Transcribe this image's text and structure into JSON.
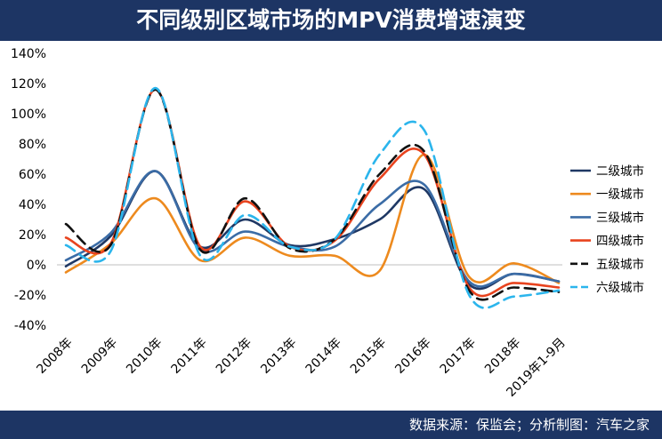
{
  "header": {
    "title": "不同级别区域市场的MPV消费增速演变"
  },
  "footer": {
    "source": "数据来源：保监会；分析制图：汽车之家"
  },
  "chart_data": {
    "type": "line",
    "title": "不同级别区域市场的MPV消费增速演变",
    "xlabel": "",
    "ylabel": "",
    "categories": [
      "2008年",
      "2009年",
      "2010年",
      "2011年",
      "2012年",
      "2013年",
      "2014年",
      "2015年",
      "2016年",
      "2017年",
      "2018年",
      "2019年1-9月"
    ],
    "y_ticks": [
      "140%",
      "120%",
      "100%",
      "80%",
      "60%",
      "40%",
      "20%",
      "0%",
      "-20%",
      "-40%"
    ],
    "ylim": [
      -40,
      140
    ],
    "y_unit": "%",
    "grid": false,
    "smooth": true,
    "legend_position": "right",
    "series": [
      {
        "name": "二级城市",
        "color": "#1f3864",
        "dash": "solid",
        "values": [
          -1,
          19,
          62,
          12,
          30,
          13,
          17,
          30,
          50,
          -13,
          -6,
          -11
        ]
      },
      {
        "name": "一级城市",
        "color": "#ed8a1e",
        "dash": "solid",
        "values": [
          -5,
          14,
          44,
          3,
          18,
          6,
          6,
          -4,
          73,
          -8,
          1,
          -12
        ]
      },
      {
        "name": "三级城市",
        "color": "#3b6ca6",
        "dash": "solid",
        "values": [
          3,
          21,
          62,
          10,
          22,
          12,
          12,
          40,
          53,
          -11,
          -6,
          -11
        ]
      },
      {
        "name": "四级城市",
        "color": "#e8431e",
        "dash": "solid",
        "values": [
          18,
          14,
          116,
          12,
          42,
          12,
          16,
          57,
          73,
          -15,
          -12,
          -15
        ]
      },
      {
        "name": "五级城市",
        "color": "#111111",
        "dash": "dashed",
        "values": [
          27,
          13,
          116,
          10,
          44,
          11,
          17,
          60,
          75,
          -17,
          -15,
          -18
        ]
      },
      {
        "name": "六级城市",
        "color": "#2bb5ec",
        "dash": "dashed",
        "values": [
          13,
          9,
          117,
          6,
          33,
          12,
          17,
          73,
          89,
          -20,
          -21,
          -17
        ]
      }
    ]
  }
}
